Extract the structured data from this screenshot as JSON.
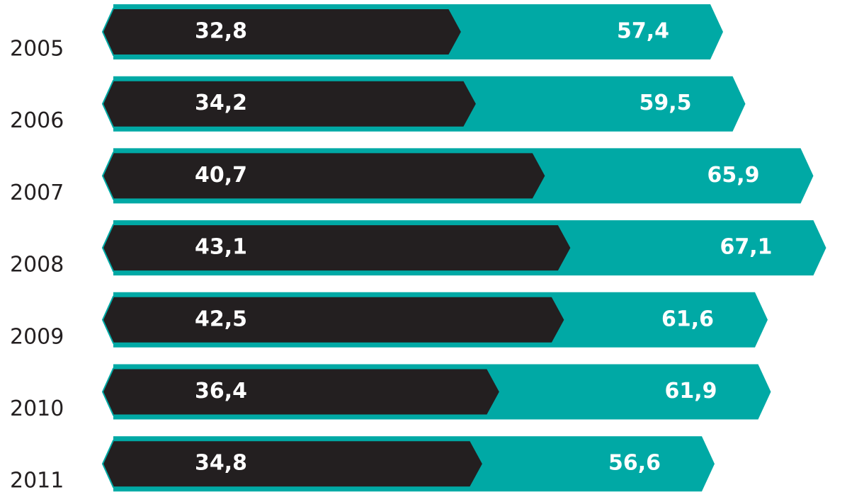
{
  "chart_data": {
    "type": "overlap-bar",
    "categories": [
      "2005",
      "2006",
      "2007",
      "2008",
      "2009",
      "2010",
      "2011"
    ],
    "series": [
      {
        "color": "#00a9a5",
        "values": [
          57.4,
          59.5,
          65.9,
          67.1,
          61.6,
          61.9,
          56.6
        ],
        "value_labels": [
          "57,4",
          "59,5",
          "65,9",
          "67,1",
          "61,6",
          "61,9",
          "56,6"
        ]
      },
      {
        "color": "#231f20",
        "values": [
          32.8,
          34.2,
          40.7,
          43.1,
          42.5,
          36.4,
          34.8
        ],
        "value_labels": [
          "32,8",
          "34,2",
          "40,7",
          "43,1",
          "42,5",
          "36,4",
          "34,8"
        ]
      }
    ],
    "xlim": [
      0,
      68
    ]
  }
}
